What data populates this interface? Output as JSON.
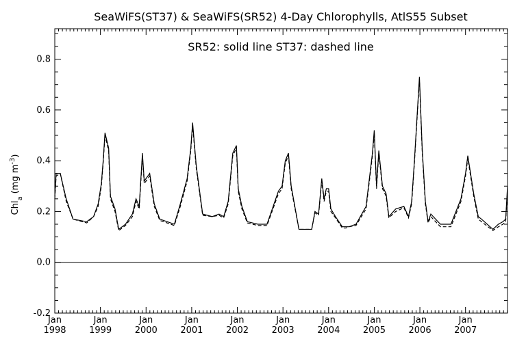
{
  "chart_data": {
    "type": "line",
    "title": "SeaWiFS(ST37) & SeaWiFS(SR52) 4-Day Chlorophylls, AtlS55 Subset",
    "subtitle": "SR52: solid line   ST37: dashed line",
    "ylabel_main": "Chl",
    "ylabel_sub": "a",
    "ylabel_unit_start": "(mg m",
    "ylabel_unit_exp": "-3",
    "ylabel_unit_end": ")",
    "xlim": [
      1998.0,
      2007.92
    ],
    "ylim": [
      -0.2,
      0.92
    ],
    "y_ticks": [
      -0.2,
      0.0,
      0.2,
      0.4,
      0.6,
      0.8
    ],
    "y_tick_labels": [
      "-0.2",
      "0.0",
      "0.2",
      "0.4",
      "0.6",
      "0.8"
    ],
    "x_ticks": [
      1998,
      1999,
      2000,
      2001,
      2002,
      2003,
      2004,
      2005,
      2006,
      2007
    ],
    "x_tick_month": [
      "Jan",
      "Jan",
      "Jan",
      "Jan",
      "Jan",
      "Jan",
      "Jan",
      "Jan",
      "Jan",
      "Jan"
    ],
    "x_tick_year": [
      "1998",
      "1999",
      "2000",
      "2001",
      "2002",
      "2003",
      "2004",
      "2005",
      "2006",
      "2007"
    ],
    "reference_line_y": 0.0,
    "series": [
      {
        "name": "SR52",
        "style": "solid",
        "x": [
          1998.0,
          1998.03,
          1998.12,
          1998.25,
          1998.4,
          1998.7,
          1998.85,
          1998.95,
          1999.02,
          1999.06,
          1999.1,
          1999.18,
          1999.22,
          1999.32,
          1999.4,
          1999.55,
          1999.7,
          1999.78,
          1999.85,
          1999.92,
          1999.96,
          2000.0,
          2000.08,
          2000.18,
          2000.3,
          2000.62,
          2000.75,
          2000.9,
          2000.98,
          2001.02,
          2001.1,
          2001.24,
          2001.45,
          2001.6,
          2001.7,
          2001.8,
          2001.9,
          2001.98,
          2002.02,
          2002.1,
          2002.22,
          2002.45,
          2002.65,
          2002.9,
          2002.98,
          2003.05,
          2003.12,
          2003.18,
          2003.35,
          2003.63,
          2003.7,
          2003.78,
          2003.85,
          2003.9,
          2003.95,
          2004.0,
          2004.05,
          2004.15,
          2004.3,
          2004.38,
          2004.45,
          2004.6,
          2004.82,
          2004.96,
          2005.0,
          2005.05,
          2005.1,
          2005.18,
          2005.26,
          2005.32,
          2005.47,
          2005.65,
          2005.75,
          2005.82,
          2005.88,
          2005.93,
          2005.99,
          2006.05,
          2006.12,
          2006.18,
          2006.24,
          2006.45,
          2006.55,
          2006.68,
          2006.9,
          2007.0,
          2007.05,
          2007.18,
          2007.28,
          2007.35,
          2007.6,
          2007.72,
          2007.82,
          2007.88,
          2007.92
        ],
        "y": [
          0.26,
          0.35,
          0.35,
          0.25,
          0.17,
          0.16,
          0.18,
          0.23,
          0.31,
          0.4,
          0.51,
          0.45,
          0.26,
          0.21,
          0.13,
          0.15,
          0.19,
          0.25,
          0.22,
          0.43,
          0.32,
          0.33,
          0.35,
          0.23,
          0.17,
          0.15,
          0.23,
          0.33,
          0.45,
          0.55,
          0.38,
          0.19,
          0.18,
          0.19,
          0.18,
          0.24,
          0.43,
          0.46,
          0.29,
          0.22,
          0.16,
          0.15,
          0.15,
          0.28,
          0.3,
          0.4,
          0.43,
          0.3,
          0.13,
          0.13,
          0.2,
          0.19,
          0.33,
          0.25,
          0.29,
          0.29,
          0.21,
          0.18,
          0.14,
          0.14,
          0.14,
          0.15,
          0.22,
          0.43,
          0.52,
          0.3,
          0.44,
          0.3,
          0.27,
          0.18,
          0.21,
          0.22,
          0.18,
          0.24,
          0.4,
          0.55,
          0.73,
          0.45,
          0.24,
          0.16,
          0.19,
          0.15,
          0.15,
          0.15,
          0.25,
          0.35,
          0.42,
          0.27,
          0.18,
          0.17,
          0.13,
          0.15,
          0.16,
          0.17,
          0.3
        ]
      },
      {
        "name": "ST37",
        "style": "dashed",
        "x": [
          1998.0,
          1998.03,
          1998.12,
          1998.25,
          1998.4,
          1998.7,
          1998.85,
          1998.95,
          1999.02,
          1999.06,
          1999.1,
          1999.18,
          1999.22,
          1999.32,
          1999.4,
          1999.55,
          1999.7,
          1999.78,
          1999.85,
          1999.92,
          1999.96,
          2000.0,
          2000.08,
          2000.18,
          2000.3,
          2000.62,
          2000.75,
          2000.9,
          2000.98,
          2001.02,
          2001.1,
          2001.24,
          2001.45,
          2001.6,
          2001.7,
          2001.8,
          2001.9,
          2001.98,
          2002.02,
          2002.1,
          2002.22,
          2002.45,
          2002.65,
          2002.9,
          2002.98,
          2003.05,
          2003.12,
          2003.18,
          2003.35,
          2003.63,
          2003.7,
          2003.78,
          2003.85,
          2003.9,
          2003.95,
          2004.0,
          2004.05,
          2004.15,
          2004.3,
          2004.38,
          2004.45,
          2004.6,
          2004.82,
          2004.96,
          2005.0,
          2005.05,
          2005.1,
          2005.18,
          2005.26,
          2005.32,
          2005.47,
          2005.65,
          2005.75,
          2005.82,
          2005.88,
          2005.93,
          2005.99,
          2006.05,
          2006.12,
          2006.18,
          2006.24,
          2006.45,
          2006.55,
          2006.68,
          2006.9,
          2007.0,
          2007.05,
          2007.18,
          2007.28,
          2007.35,
          2007.6,
          2007.72,
          2007.82,
          2007.88,
          2007.92
        ],
        "y": [
          0.25,
          0.34,
          0.35,
          0.24,
          0.17,
          0.155,
          0.18,
          0.22,
          0.3,
          0.39,
          0.5,
          0.44,
          0.25,
          0.2,
          0.125,
          0.145,
          0.18,
          0.24,
          0.21,
          0.42,
          0.31,
          0.32,
          0.34,
          0.22,
          0.165,
          0.145,
          0.22,
          0.32,
          0.44,
          0.54,
          0.37,
          0.185,
          0.18,
          0.185,
          0.175,
          0.23,
          0.42,
          0.45,
          0.28,
          0.21,
          0.155,
          0.145,
          0.145,
          0.27,
          0.29,
          0.39,
          0.42,
          0.29,
          0.13,
          0.13,
          0.195,
          0.185,
          0.32,
          0.24,
          0.28,
          0.28,
          0.2,
          0.175,
          0.135,
          0.135,
          0.14,
          0.145,
          0.21,
          0.42,
          0.51,
          0.29,
          0.43,
          0.29,
          0.26,
          0.175,
          0.2,
          0.215,
          0.175,
          0.23,
          0.39,
          0.54,
          0.72,
          0.44,
          0.23,
          0.155,
          0.18,
          0.14,
          0.14,
          0.14,
          0.24,
          0.34,
          0.41,
          0.26,
          0.17,
          0.16,
          0.125,
          0.14,
          0.15,
          0.16,
          0.29
        ]
      }
    ]
  }
}
